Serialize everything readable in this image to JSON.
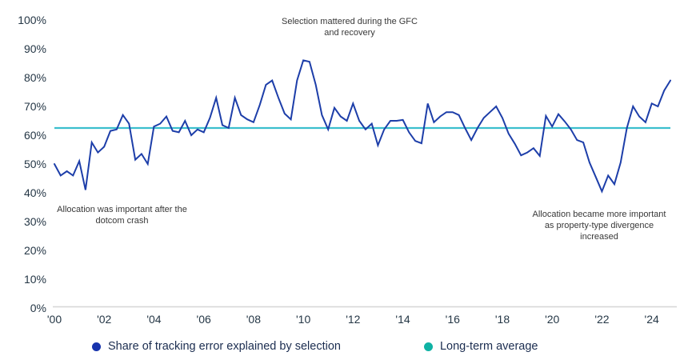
{
  "chart_data": {
    "type": "line",
    "title": "",
    "x_unit": "quarterly",
    "x_range": [
      "2000 Q1",
      "2024 Q4"
    ],
    "ylim": [
      0,
      100
    ],
    "y_tick_values": [
      0,
      10,
      20,
      30,
      40,
      50,
      60,
      70,
      80,
      90,
      100
    ],
    "y_tick_suffix": "%",
    "x_tick_years": [
      2000,
      2002,
      2004,
      2006,
      2008,
      2010,
      2012,
      2014,
      2016,
      2018,
      2020,
      2022,
      2024
    ],
    "x_tick_labels": [
      "'00",
      "'02",
      "'04",
      "'06",
      "'08",
      "'10",
      "'12",
      "'14",
      "'16",
      "'18",
      "'20",
      "'22",
      "'24"
    ],
    "grid": false,
    "legend_position": "bottom",
    "series": [
      {
        "name": "Share of tracking error explained by selection",
        "color": "#1d3ea9",
        "values": [
          50,
          46,
          47.5,
          46,
          51,
          41,
          57.5,
          54,
          56,
          61.5,
          62,
          67,
          64,
          51.5,
          53.5,
          50,
          63,
          64,
          66.5,
          61.5,
          61,
          65,
          60,
          62,
          61,
          66,
          73,
          63.5,
          62.5,
          73,
          67,
          65.5,
          64.5,
          70.5,
          77.5,
          79,
          73,
          67.5,
          65.5,
          79,
          86,
          85.5,
          77.5,
          67,
          62,
          69.5,
          66.5,
          65,
          71,
          65,
          62,
          64,
          56.5,
          62,
          65,
          65,
          65.3,
          61,
          58,
          57.2,
          71,
          64.5,
          66.5,
          68,
          68,
          67,
          62.5,
          58.3,
          62.5,
          66,
          68,
          70,
          66,
          60.5,
          57,
          53,
          54,
          55.5,
          52.8,
          66.7,
          63,
          67.3,
          64.8,
          62,
          58.3,
          57.5,
          50.5,
          45.5,
          40.5,
          46,
          43,
          50.5,
          62.5,
          70,
          66.5,
          64.5,
          71,
          70,
          75.5,
          79
        ]
      },
      {
        "name": "Long-term average",
        "color": "#3bbfcd",
        "value": 62.5
      }
    ],
    "annotations": [
      {
        "id": "gfc",
        "text": "Selection mattered during the GFC and recovery"
      },
      {
        "id": "dotcom",
        "text": "Allocation was important after the dotcom crash"
      },
      {
        "id": "divergence",
        "text": "Allocation became more important as property-type divergence increased"
      }
    ]
  },
  "legend": {
    "items": [
      {
        "label": "Share of tracking error explained by selection",
        "color": "#1733ad"
      },
      {
        "label": "Long-term average",
        "color": "#0fb2a4"
      }
    ]
  }
}
